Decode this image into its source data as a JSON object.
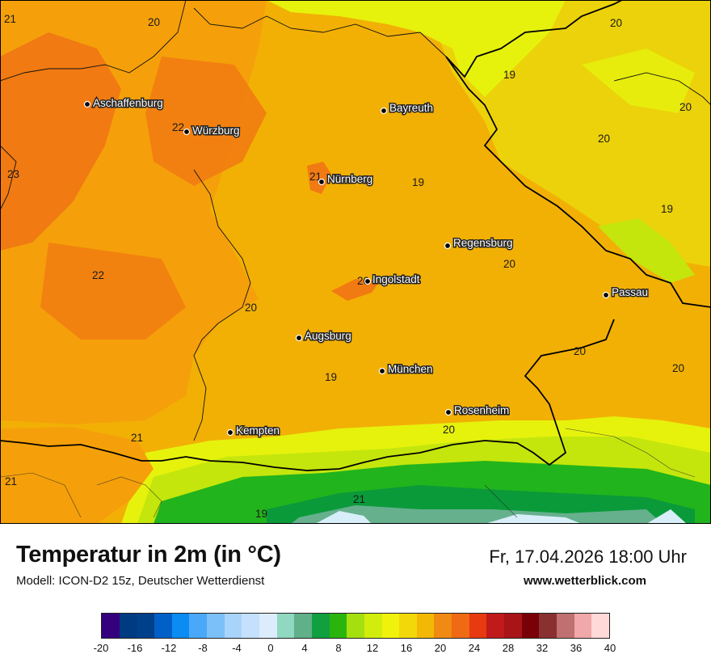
{
  "map": {
    "cities": [
      {
        "name": "Aschaffenburg"
      },
      {
        "name": "Würzburg"
      },
      {
        "name": "Bayreuth"
      },
      {
        "name": "Nürnberg"
      },
      {
        "name": "Regensburg"
      },
      {
        "name": "Ingolstadt"
      },
      {
        "name": "Passau"
      },
      {
        "name": "Augsburg"
      },
      {
        "name": "München"
      },
      {
        "name": "Rosenheim"
      },
      {
        "name": "Kempten"
      }
    ],
    "values": [
      "21",
      "20",
      "20",
      "19",
      "20",
      "22",
      "23",
      "21",
      "19",
      "20",
      "19",
      "22",
      "20",
      "20",
      "20",
      "20",
      "19",
      "20",
      "21",
      "21",
      "20",
      "21",
      "19"
    ],
    "colors": {
      "base": "#f2b005",
      "warm": "#f5a00a",
      "hot": "#f17a12",
      "cool": "#ecd20a",
      "yellow": "#e6f20c",
      "lime": "#c4e60c",
      "green": "#22b41c",
      "darkgreen": "#0a9a3a",
      "teal": "#66b08e",
      "pale": "#d8eef8"
    }
  },
  "footer": {
    "title": "Temperatur in 2m (in °C)",
    "model": "Modell: ICON-D2 15z, Deutscher Wetterdienst",
    "datetime": "Fr, 17.04.2026 18:00 Uhr",
    "website": "www.wetterblick.com"
  },
  "legend": {
    "colors": [
      "#34007e",
      "#003a80",
      "#003f8a",
      "#0060c8",
      "#0a8cf2",
      "#4aa8f8",
      "#7cc0fa",
      "#a8d4fc",
      "#c4e0fc",
      "#dcecfc",
      "#90d8c0",
      "#60b08a",
      "#10a040",
      "#2ab40e",
      "#a4e010",
      "#d2ec0c",
      "#f0f20c",
      "#f2d808",
      "#f2b805",
      "#f18a12",
      "#ef6a12",
      "#e83a10",
      "#c01a1a",
      "#a81418",
      "#7a0008",
      "#8a3030",
      "#c07070",
      "#f0a8a8",
      "#ffd8d8"
    ],
    "ticks": [
      "-20",
      "-16",
      "-12",
      "-8",
      "-4",
      "0",
      "4",
      "8",
      "12",
      "16",
      "20",
      "24",
      "28",
      "32",
      "36",
      "40"
    ]
  }
}
